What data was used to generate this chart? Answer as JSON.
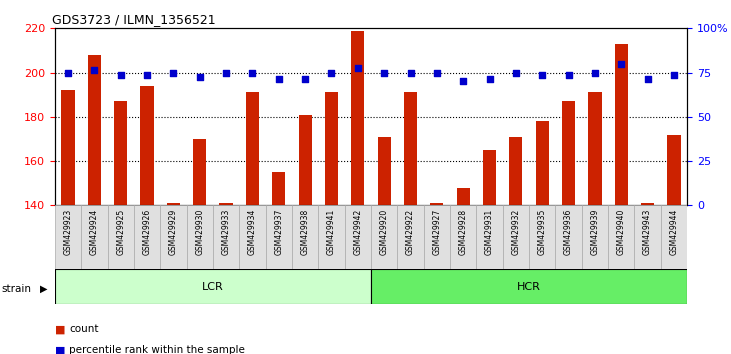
{
  "title": "GDS3723 / ILMN_1356521",
  "samples": [
    "GSM429923",
    "GSM429924",
    "GSM429925",
    "GSM429926",
    "GSM429929",
    "GSM429930",
    "GSM429933",
    "GSM429934",
    "GSM429937",
    "GSM429938",
    "GSM429941",
    "GSM429942",
    "GSM429920",
    "GSM429922",
    "GSM429927",
    "GSM429928",
    "GSM429931",
    "GSM429932",
    "GSM429935",
    "GSM429936",
    "GSM429939",
    "GSM429940",
    "GSM429943",
    "GSM429944"
  ],
  "counts": [
    192,
    208,
    187,
    194,
    141,
    170,
    141,
    191,
    155,
    181,
    191,
    219,
    171,
    191,
    141,
    148,
    165,
    171,
    178,
    187,
    191,
    213,
    141,
    172
  ],
  "percentile_values": [
    200,
    201,
    199,
    199,
    200,
    198,
    200,
    200,
    197,
    197,
    200,
    202,
    200,
    200,
    200,
    196,
    197,
    200,
    199,
    199,
    200,
    204,
    197,
    199
  ],
  "groups": [
    {
      "name": "LCR",
      "start": 0,
      "end": 12,
      "color": "#ccffcc"
    },
    {
      "name": "HCR",
      "start": 12,
      "end": 24,
      "color": "#66ee66"
    }
  ],
  "bar_color": "#cc2200",
  "dot_color": "#0000cc",
  "ylim_left": [
    140,
    220
  ],
  "ylim_right": [
    0,
    100
  ],
  "yticks_left": [
    140,
    160,
    180,
    200,
    220
  ],
  "yticks_right": [
    0,
    25,
    50,
    75,
    100
  ],
  "grid_lines": [
    160,
    180,
    200
  ],
  "bar_width": 0.5,
  "bg_color": "#f0f0f0"
}
